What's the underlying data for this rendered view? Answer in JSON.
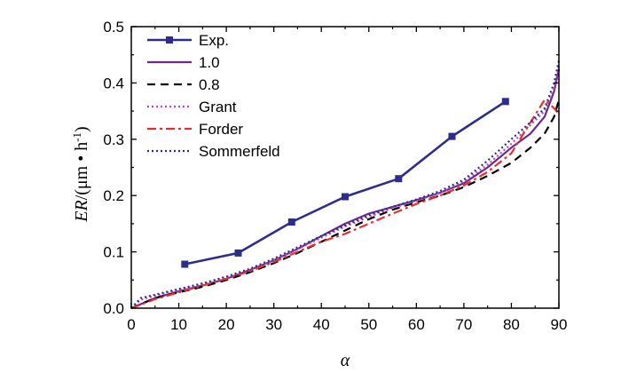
{
  "chart_data": {
    "type": "line",
    "title": "",
    "xlabel": "α",
    "ylabel": {
      "er": "ER",
      "slash_unit": "/(μm • h",
      "exp": "-1",
      "close": ")"
    },
    "xlim": [
      0,
      90
    ],
    "ylim": [
      0.0,
      0.5
    ],
    "xticks": [
      0,
      10,
      20,
      30,
      40,
      50,
      60,
      70,
      80,
      90
    ],
    "yticks": [
      0.0,
      0.1,
      0.2,
      0.3,
      0.4,
      0.5
    ],
    "x_tick_labels": [
      "0",
      "10",
      "20",
      "30",
      "40",
      "50",
      "60",
      "70",
      "80",
      "90"
    ],
    "y_tick_labels": [
      "0.0",
      "0.1",
      "0.2",
      "0.3",
      "0.4",
      "0.5"
    ],
    "legend_position": "top-left",
    "series": [
      {
        "name": "Exp.",
        "color": "#2e2e8a",
        "style": "solid-square-markers",
        "x": [
          11.25,
          22.5,
          33.75,
          45,
          56.25,
          67.5,
          78.75
        ],
        "y": [
          0.078,
          0.098,
          0.153,
          0.198,
          0.23,
          0.305,
          0.367
        ]
      },
      {
        "name": "1.0",
        "color": "#6a2a8c",
        "style": "solid",
        "x": [
          0,
          5,
          10,
          15,
          20,
          25,
          30,
          35,
          40,
          45,
          50,
          55,
          60,
          65,
          70,
          75,
          80,
          84,
          87,
          89,
          90
        ],
        "y": [
          0.0,
          0.018,
          0.03,
          0.04,
          0.052,
          0.068,
          0.085,
          0.105,
          0.128,
          0.15,
          0.168,
          0.18,
          0.192,
          0.205,
          0.222,
          0.25,
          0.285,
          0.31,
          0.34,
          0.385,
          0.425
        ]
      },
      {
        "name": "0.8",
        "color": "#000000",
        "style": "dashed",
        "x": [
          0,
          5,
          10,
          15,
          20,
          25,
          30,
          35,
          40,
          45,
          50,
          55,
          60,
          65,
          70,
          75,
          80,
          84,
          87,
          89,
          90
        ],
        "y": [
          0.0,
          0.018,
          0.028,
          0.038,
          0.05,
          0.064,
          0.08,
          0.098,
          0.118,
          0.138,
          0.158,
          0.175,
          0.188,
          0.2,
          0.215,
          0.235,
          0.258,
          0.285,
          0.31,
          0.34,
          0.37
        ]
      },
      {
        "name": "Grant",
        "color": "#c048b8",
        "style": "dotted",
        "x": [
          0,
          2,
          5,
          10,
          15,
          20,
          25,
          30,
          35,
          40,
          45,
          50,
          55,
          60,
          65,
          70,
          75,
          80,
          84,
          87,
          89,
          90
        ],
        "y": [
          0.0,
          0.015,
          0.022,
          0.032,
          0.042,
          0.054,
          0.068,
          0.085,
          0.105,
          0.125,
          0.145,
          0.162,
          0.178,
          0.19,
          0.205,
          0.225,
          0.255,
          0.292,
          0.325,
          0.35,
          0.39,
          0.43
        ]
      },
      {
        "name": "Forder",
        "color": "#e03030",
        "style": "dash-dot",
        "x": [
          0,
          5,
          10,
          15,
          20,
          25,
          30,
          35,
          40,
          45,
          50,
          55,
          60,
          65,
          70,
          75,
          80,
          84,
          87,
          89,
          90
        ],
        "y": [
          0.0,
          0.016,
          0.028,
          0.04,
          0.052,
          0.066,
          0.082,
          0.1,
          0.118,
          0.132,
          0.15,
          0.168,
          0.185,
          0.2,
          0.218,
          0.242,
          0.275,
          0.33,
          0.37,
          0.355,
          0.345
        ]
      },
      {
        "name": "Sommerfeld",
        "color": "#2c2c90",
        "style": "dotted",
        "x": [
          0,
          2,
          5,
          10,
          15,
          20,
          25,
          30,
          35,
          40,
          45,
          50,
          55,
          60,
          65,
          70,
          75,
          80,
          84,
          87,
          89,
          90
        ],
        "y": [
          0.0,
          0.018,
          0.024,
          0.034,
          0.044,
          0.056,
          0.07,
          0.088,
          0.108,
          0.128,
          0.147,
          0.165,
          0.18,
          0.193,
          0.208,
          0.228,
          0.262,
          0.3,
          0.33,
          0.355,
          0.4,
          0.44
        ]
      }
    ]
  }
}
